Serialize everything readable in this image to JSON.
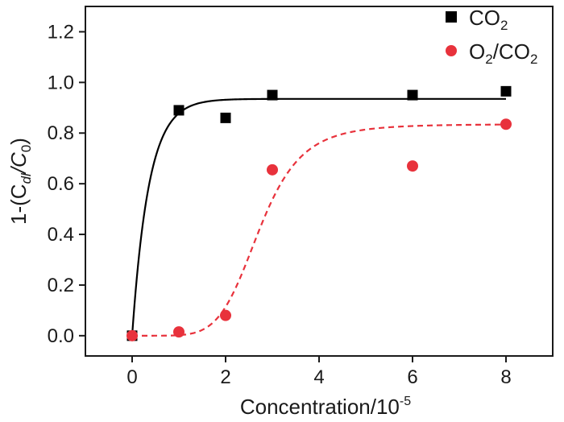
{
  "chart_data": {
    "type": "scatter",
    "title": "",
    "xlabel": "Concentration/10",
    "xlabel_sup": "-5",
    "ylabel": {
      "prefix": "1-(C",
      "sub1": "dl",
      "mid": "/C",
      "sub2": "0",
      "suffix": ")"
    },
    "xlim": [
      -1,
      9
    ],
    "ylim": [
      -0.08,
      1.3
    ],
    "xticks": [
      0,
      2,
      4,
      6,
      8
    ],
    "yticks": [
      0.0,
      0.2,
      0.4,
      0.6,
      0.8,
      1.0,
      1.2
    ],
    "xtick_labels": [
      "0",
      "2",
      "4",
      "6",
      "8"
    ],
    "ytick_labels": [
      "0.0",
      "0.2",
      "0.4",
      "0.6",
      "0.8",
      "1.0",
      "1.2"
    ],
    "grid": false,
    "legend_position": "top-right",
    "series": [
      {
        "name": "CO2",
        "legend": {
          "main": "CO",
          "sub": "2"
        },
        "marker": "square",
        "color": "#000000",
        "x": [
          0,
          1,
          2,
          3,
          6,
          8
        ],
        "y": [
          0.0,
          0.89,
          0.86,
          0.95,
          0.95,
          0.965
        ],
        "fit": {
          "style": "solid",
          "model": "saturation",
          "ymax": 0.935,
          "rate": 2.8
        }
      },
      {
        "name": "O2/CO2",
        "legend": {
          "main1": "O",
          "sub1": "2",
          "main2": "/CO",
          "sub2": "2"
        },
        "marker": "circle",
        "color": "#e8323c",
        "x": [
          0,
          1,
          2,
          3,
          6,
          8
        ],
        "y": [
          0.0,
          0.015,
          0.08,
          0.655,
          0.67,
          0.835
        ],
        "fit": {
          "style": "dashed",
          "model": "sigmoid",
          "ymax": 0.835,
          "center": 2.72,
          "power": 6
        }
      }
    ]
  }
}
